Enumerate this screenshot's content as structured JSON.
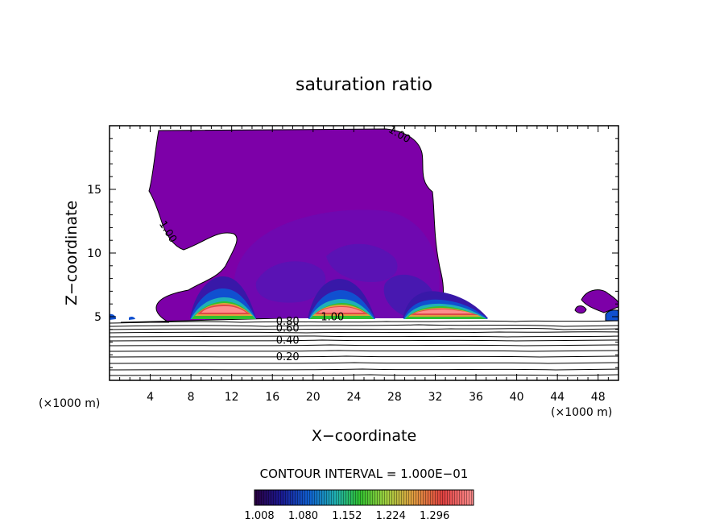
{
  "chart_data": {
    "type": "contour",
    "title": "saturation ratio",
    "xlabel": "X−coordinate",
    "ylabel": "Z−coordinate",
    "x_unit": "(×1000 m)",
    "x_unit_right": "(×1000 m)",
    "xlim": [
      0,
      50
    ],
    "ylim": [
      0,
      20
    ],
    "x_ticks": [
      4,
      8,
      12,
      16,
      20,
      24,
      28,
      32,
      36,
      40,
      44,
      48
    ],
    "y_ticks": [
      5,
      10,
      15
    ],
    "contour_interval_text": "CONTOUR INTERVAL = 1.000E−01",
    "contour_labels": [
      {
        "text": "1.00",
        "x": 28.4,
        "z": 19.2,
        "rotate": 30
      },
      {
        "text": "1.00",
        "x": 5.6,
        "z": 11.6,
        "rotate": 58
      },
      {
        "text": "1.00",
        "x": 21.9,
        "z": 4.85,
        "rotate": 0
      },
      {
        "text": "0.80",
        "x": 17.5,
        "z": 4.5,
        "rotate": 0
      },
      {
        "text": "0.60",
        "x": 17.5,
        "z": 3.95,
        "rotate": 0
      },
      {
        "text": "0.40",
        "x": 17.5,
        "z": 3.0,
        "rotate": 0
      },
      {
        "text": "0.20",
        "x": 17.5,
        "z": 1.7,
        "rotate": 0
      }
    ],
    "colorbar": {
      "labels": [
        "1.008",
        "1.080",
        "1.152",
        "1.224",
        "1.296"
      ],
      "values": [
        1.008,
        1.08,
        1.152,
        1.224,
        1.296
      ],
      "range": [
        1.0,
        1.36
      ],
      "colors": [
        "#2a0040",
        "#1a1890",
        "#1060d0",
        "#20b0b0",
        "#30c030",
        "#a0d040",
        "#e0a040",
        "#e04040",
        "#ff9090"
      ]
    },
    "colors": {
      "cloud_main": "#7d00a8",
      "cloud_inner": "#6a10b8",
      "cloud_core": "#4818b0",
      "core_dark": "#2818a0",
      "contour_line": "#000000"
    }
  }
}
